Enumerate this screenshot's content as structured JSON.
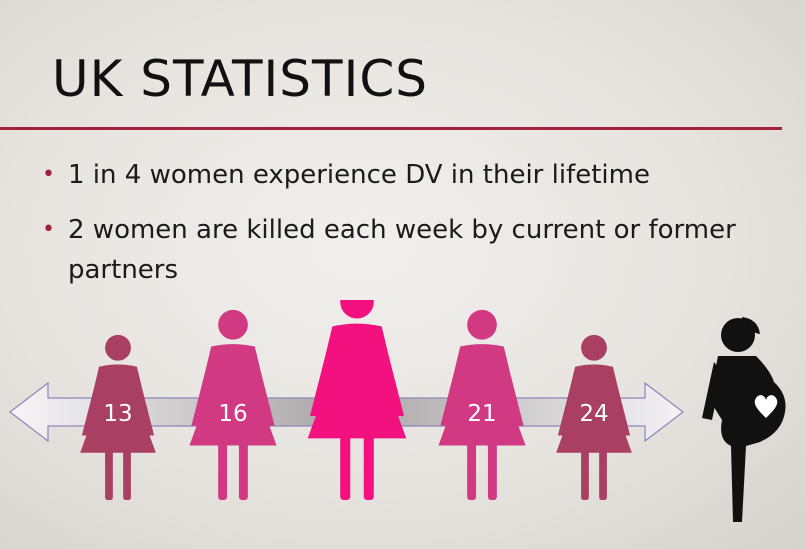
{
  "slide": {
    "title": "UK STATISTICS",
    "bullets": [
      "1 in 4 women experience DV in their lifetime",
      "2 women are killed each week by current or former partners"
    ]
  },
  "figure": {
    "ages": [
      {
        "label": "13",
        "color": "#a93f62"
      },
      {
        "label": "16",
        "color": "#d13a82"
      },
      {
        "label": "",
        "color": "#f2117f"
      },
      {
        "label": "21",
        "color": "#d13a82"
      },
      {
        "label": "24",
        "color": "#a93f62"
      }
    ],
    "pregnant_color": "#111111"
  }
}
